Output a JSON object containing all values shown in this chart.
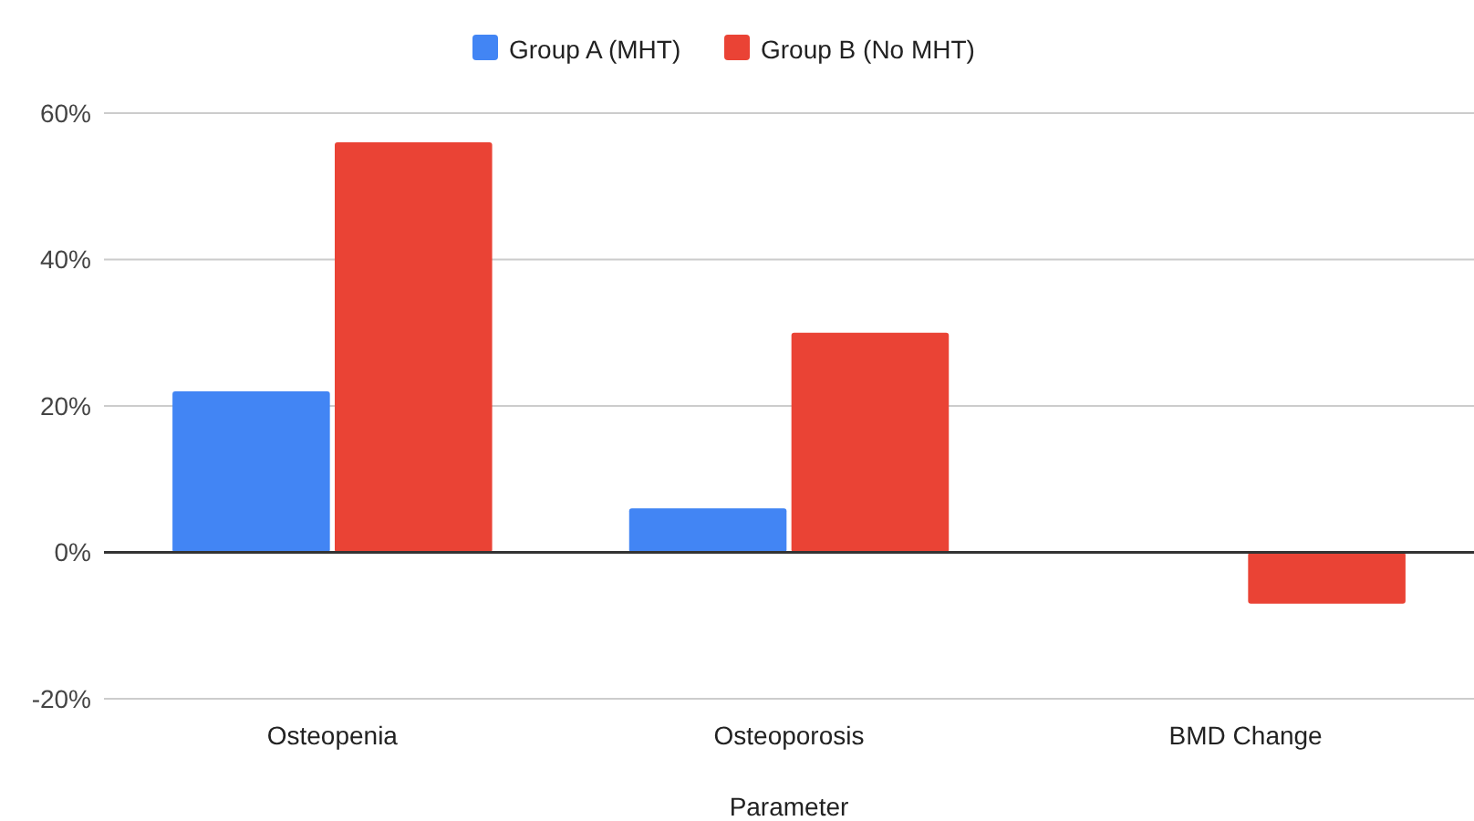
{
  "chart_data": {
    "type": "bar",
    "xlabel": "Parameter",
    "categories": [
      "Osteopenia",
      "Osteoporosis",
      "BMD Change"
    ],
    "series": [
      {
        "name": "Group A (MHT)",
        "color": "#4285f4",
        "values": [
          22,
          6,
          0
        ]
      },
      {
        "name": "Group B (No MHT)",
        "color": "#ea4335",
        "values": [
          56,
          30,
          -7
        ]
      }
    ],
    "ylim": [
      -20,
      60
    ],
    "yticks": [
      {
        "value": -20,
        "label": "-20%"
      },
      {
        "value": 0,
        "label": "0%"
      },
      {
        "value": 20,
        "label": "20%"
      },
      {
        "value": 40,
        "label": "40%"
      },
      {
        "value": 60,
        "label": "60%"
      }
    ],
    "grid": "y",
    "legend": "top"
  }
}
